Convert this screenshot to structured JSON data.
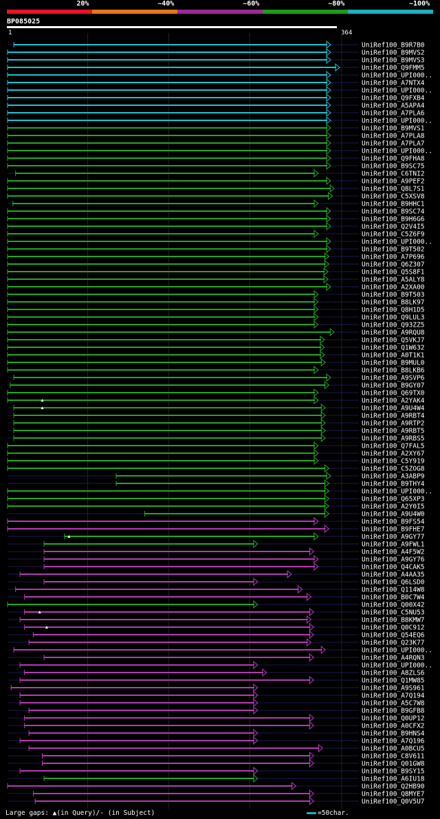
{
  "legend": {
    "labels": [
      "20%",
      "~40%",
      "~60%",
      "~80%",
      "~100%"
    ],
    "colors": [
      "#e8132a",
      "#e8741c",
      "#9d2a94",
      "#1c9c1c",
      "#1cb0c0"
    ]
  },
  "query": {
    "name": "BP085025",
    "start": "1",
    "end": "364"
  },
  "footer": {
    "gaps_note": "Large gaps: ▲(in Query)/- (in Subject)",
    "scale_note": "=50char."
  },
  "chart_data": {
    "type": "alignment",
    "query_length": 364,
    "hits": [
      {
        "name": "UniRef100_B9R7B0",
        "color": "cyan",
        "start": 8,
        "end": 364
      },
      {
        "name": "UniRef100_B9MVS2",
        "color": "cyan",
        "start": 1,
        "end": 364
      },
      {
        "name": "UniRef100_B9MVS3",
        "color": "cyan",
        "start": 1,
        "end": 364
      },
      {
        "name": "UniRef100_Q9FMM5",
        "color": "cyan",
        "start": 1,
        "end": 374
      },
      {
        "name": "UniRef100_UPI000..",
        "color": "cyan",
        "start": 1,
        "end": 364
      },
      {
        "name": "UniRef100_A7NTX4",
        "color": "cyan",
        "start": 1,
        "end": 364
      },
      {
        "name": "UniRef100_UPI000..",
        "color": "cyan",
        "start": 1,
        "end": 364
      },
      {
        "name": "UniRef100_Q9FXB4",
        "color": "cyan",
        "start": 1,
        "end": 364
      },
      {
        "name": "UniRef100_A5APA4",
        "color": "cyan",
        "start": 1,
        "end": 364
      },
      {
        "name": "UniRef100_A7PLA6",
        "color": "cyan",
        "start": 1,
        "end": 364
      },
      {
        "name": "UniRef100_UPI000..",
        "color": "cyan",
        "start": 1,
        "end": 364
      },
      {
        "name": "UniRef100_B9MVS1",
        "color": "green",
        "start": 1,
        "end": 364
      },
      {
        "name": "UniRef100_A7PLA8",
        "color": "green",
        "start": 1,
        "end": 364
      },
      {
        "name": "UniRef100_A7PLA7",
        "color": "green",
        "start": 1,
        "end": 364
      },
      {
        "name": "UniRef100_UPI000..",
        "color": "green",
        "start": 1,
        "end": 364
      },
      {
        "name": "UniRef100_Q9FHA8",
        "color": "green",
        "start": 1,
        "end": 364
      },
      {
        "name": "UniRef100_B9SC75",
        "color": "green",
        "start": 1,
        "end": 364
      },
      {
        "name": "UniRef100_C6TNI2",
        "color": "green",
        "start": 10,
        "end": 350
      },
      {
        "name": "UniRef100_A9PEF2",
        "color": "green",
        "start": 1,
        "end": 364
      },
      {
        "name": "UniRef100_Q8L7S1",
        "color": "green",
        "start": 1,
        "end": 368
      },
      {
        "name": "UniRef100_C5XSV8",
        "color": "green",
        "start": 1,
        "end": 366
      },
      {
        "name": "UniRef100_B9HHC1",
        "color": "green",
        "start": 7,
        "end": 350
      },
      {
        "name": "UniRef100_B9SC74",
        "color": "green",
        "start": 1,
        "end": 364
      },
      {
        "name": "UniRef100_B9H6G6",
        "color": "green",
        "start": 1,
        "end": 364
      },
      {
        "name": "UniRef100_Q2V4I5",
        "color": "green",
        "start": 1,
        "end": 364
      },
      {
        "name": "UniRef100_C5Z6F9",
        "color": "green",
        "start": 1,
        "end": 350
      },
      {
        "name": "UniRef100_UPI000..",
        "color": "green",
        "start": 1,
        "end": 364
      },
      {
        "name": "UniRef100_B9T502",
        "color": "green",
        "start": 1,
        "end": 364
      },
      {
        "name": "UniRef100_A7P696",
        "color": "green",
        "start": 1,
        "end": 362
      },
      {
        "name": "UniRef100_Q6Z307",
        "color": "green",
        "start": 1,
        "end": 362
      },
      {
        "name": "UniRef100_Q5S8F1",
        "color": "green",
        "start": 1,
        "end": 361
      },
      {
        "name": "UniRef100_A5ALY8",
        "color": "green",
        "start": 1,
        "end": 361
      },
      {
        "name": "UniRef100_A2XA00",
        "color": "green",
        "start": 1,
        "end": 364
      },
      {
        "name": "UniRef100_B9T503",
        "color": "green",
        "start": 1,
        "end": 350
      },
      {
        "name": "UniRef100_B8LK97",
        "color": "green",
        "start": 1,
        "end": 350
      },
      {
        "name": "UniRef100_Q8H1D5",
        "color": "green",
        "start": 1,
        "end": 350
      },
      {
        "name": "UniRef100_Q9LUL3",
        "color": "green",
        "start": 1,
        "end": 350
      },
      {
        "name": "UniRef100_Q93ZZ5",
        "color": "green",
        "start": 1,
        "end": 350
      },
      {
        "name": "UniRef100_A9RQU8",
        "color": "green",
        "start": 1,
        "end": 368
      },
      {
        "name": "UniRef100_Q5VKJ7",
        "color": "green",
        "start": 1,
        "end": 357
      },
      {
        "name": "UniRef100_Q1W632",
        "color": "green",
        "start": 1,
        "end": 357
      },
      {
        "name": "UniRef100_A0T1K1",
        "color": "green",
        "start": 1,
        "end": 357
      },
      {
        "name": "UniRef100_B9MUL0",
        "color": "green",
        "start": 1,
        "end": 358
      },
      {
        "name": "UniRef100_B8LKB6",
        "color": "green",
        "start": 1,
        "end": 350
      },
      {
        "name": "UniRef100_A9SVP6",
        "color": "green",
        "start": 8,
        "end": 364
      },
      {
        "name": "UniRef100_B9GY07",
        "color": "green",
        "start": 4,
        "end": 362
      },
      {
        "name": "UniRef100_Q69TX0",
        "color": "green",
        "start": 1,
        "end": 350
      },
      {
        "name": "UniRef100_A2YAK4",
        "color": "green",
        "start": 1,
        "end": 350
      },
      {
        "name": "UniRef100_A9U4W4",
        "color": "green",
        "start": 8,
        "end": 358
      },
      {
        "name": "UniRef100_A9RBT4",
        "color": "green",
        "start": 8,
        "end": 358
      },
      {
        "name": "UniRef100_A9RTP2",
        "color": "green",
        "start": 8,
        "end": 358
      },
      {
        "name": "UniRef100_A9RBT5",
        "color": "green",
        "start": 8,
        "end": 358
      },
      {
        "name": "UniRef100_A9RBS5",
        "color": "green",
        "start": 8,
        "end": 358
      },
      {
        "name": "UniRef100_Q7FAL5",
        "color": "green",
        "start": 1,
        "end": 350
      },
      {
        "name": "UniRef100_A2XY67",
        "color": "green",
        "start": 1,
        "end": 350
      },
      {
        "name": "UniRef100_C5Y919",
        "color": "green",
        "start": 1,
        "end": 350
      },
      {
        "name": "UniRef100_C5ZOG8",
        "color": "green",
        "start": 1,
        "end": 362
      },
      {
        "name": "UniRef100_A3ABP9",
        "color": "green",
        "start": 123,
        "end": 364
      },
      {
        "name": "UniRef100_B9THY4",
        "color": "green",
        "start": 123,
        "end": 362
      },
      {
        "name": "UniRef100_UPI000..",
        "color": "green",
        "start": 1,
        "end": 362
      },
      {
        "name": "UniRef100_Q65XP3",
        "color": "green",
        "start": 1,
        "end": 362
      },
      {
        "name": "UniRef100_A2Y0I5",
        "color": "green",
        "start": 1,
        "end": 362
      },
      {
        "name": "UniRef100_A9U4W0",
        "color": "green",
        "start": 155,
        "end": 362
      },
      {
        "name": "UniRef100_B9FS54",
        "color": "magenta",
        "start": 1,
        "end": 350
      },
      {
        "name": "UniRef100_B9FHE7",
        "color": "magenta",
        "start": 1,
        "end": 362
      },
      {
        "name": "UniRef100_A9GY77",
        "color": "green",
        "start": 65,
        "end": 350
      },
      {
        "name": "UniRef100_A9FWL1",
        "color": "green",
        "start": 42,
        "end": 282
      },
      {
        "name": "UniRef100_A4F5W2",
        "color": "magenta",
        "start": 42,
        "end": 345
      },
      {
        "name": "UniRef100_A9GY76",
        "color": "magenta",
        "start": 42,
        "end": 350
      },
      {
        "name": "UniRef100_Q4CAK5",
        "color": "magenta",
        "start": 42,
        "end": 350
      },
      {
        "name": "UniRef100_A4AA35",
        "color": "magenta",
        "start": 15,
        "end": 320
      },
      {
        "name": "UniRef100_Q6LSD0",
        "color": "magenta",
        "start": 42,
        "end": 282
      },
      {
        "name": "UniRef100_Q114W8",
        "color": "magenta",
        "start": 10,
        "end": 332
      },
      {
        "name": "UniRef100_B0C7W4",
        "color": "magenta",
        "start": 20,
        "end": 342
      },
      {
        "name": "UniRef100_Q00X42",
        "color": "green",
        "start": 1,
        "end": 282
      },
      {
        "name": "UniRef100_C5NU53",
        "color": "magenta",
        "start": 20,
        "end": 345
      },
      {
        "name": "UniRef100_B8KMW7",
        "color": "magenta",
        "start": 15,
        "end": 342
      },
      {
        "name": "UniRef100_Q0C912",
        "color": "magenta",
        "start": 20,
        "end": 345
      },
      {
        "name": "UniRef100_Q54EQ6",
        "color": "magenta",
        "start": 30,
        "end": 345
      },
      {
        "name": "UniRef100_Q23K77",
        "color": "magenta",
        "start": 25,
        "end": 342
      },
      {
        "name": "UniRef100_UPI000..",
        "color": "magenta",
        "start": 8,
        "end": 358
      },
      {
        "name": "UniRef100_A4RQN3",
        "color": "magenta",
        "start": 42,
        "end": 345
      },
      {
        "name": "UniRef100_UPI000..",
        "color": "magenta",
        "start": 15,
        "end": 282
      },
      {
        "name": "UniRef100_A8ZLS6",
        "color": "magenta",
        "start": 20,
        "end": 292
      },
      {
        "name": "UniRef100_Q1MW85",
        "color": "magenta",
        "start": 15,
        "end": 345
      },
      {
        "name": "UniRef100_A9S961",
        "color": "magenta",
        "start": 5,
        "end": 282
      },
      {
        "name": "UniRef100_A7Q194",
        "color": "magenta",
        "start": 15,
        "end": 282
      },
      {
        "name": "UniRef100_A5C7W8",
        "color": "magenta",
        "start": 15,
        "end": 282
      },
      {
        "name": "UniRef100_B9GFB8",
        "color": "magenta",
        "start": 25,
        "end": 282
      },
      {
        "name": "UniRef100_Q0UP12",
        "color": "magenta",
        "start": 20,
        "end": 345
      },
      {
        "name": "UniRef100_A0CFX2",
        "color": "magenta",
        "start": 20,
        "end": 345
      },
      {
        "name": "UniRef100_B9HNS4",
        "color": "magenta",
        "start": 25,
        "end": 282
      },
      {
        "name": "UniRef100_A7Q196",
        "color": "magenta",
        "start": 15,
        "end": 282
      },
      {
        "name": "UniRef100_A0BCU5",
        "color": "magenta",
        "start": 25,
        "end": 355
      },
      {
        "name": "UniRef100_C8V611",
        "color": "magenta",
        "start": 40,
        "end": 345
      },
      {
        "name": "UniRef100_Q01GW8",
        "color": "magenta",
        "start": 40,
        "end": 345
      },
      {
        "name": "UniRef100_B9SY15",
        "color": "magenta",
        "start": 15,
        "end": 282
      },
      {
        "name": "UniRef100_A6IU18",
        "color": "green",
        "start": 42,
        "end": 282
      },
      {
        "name": "UniRef100_Q2HB90",
        "color": "magenta",
        "start": 1,
        "end": 325
      },
      {
        "name": "UniRef100_Q8MYE7",
        "color": "magenta",
        "start": 30,
        "end": 345
      },
      {
        "name": "UniRef100_Q0V5U7",
        "color": "magenta",
        "start": 32,
        "end": 345
      }
    ],
    "query_gaps": [
      {
        "row": 47,
        "pos": 40
      },
      {
        "row": 48,
        "pos": 40
      },
      {
        "row": 65,
        "pos": 70
      },
      {
        "row": 75,
        "pos": 37
      },
      {
        "row": 77,
        "pos": 45
      }
    ]
  }
}
